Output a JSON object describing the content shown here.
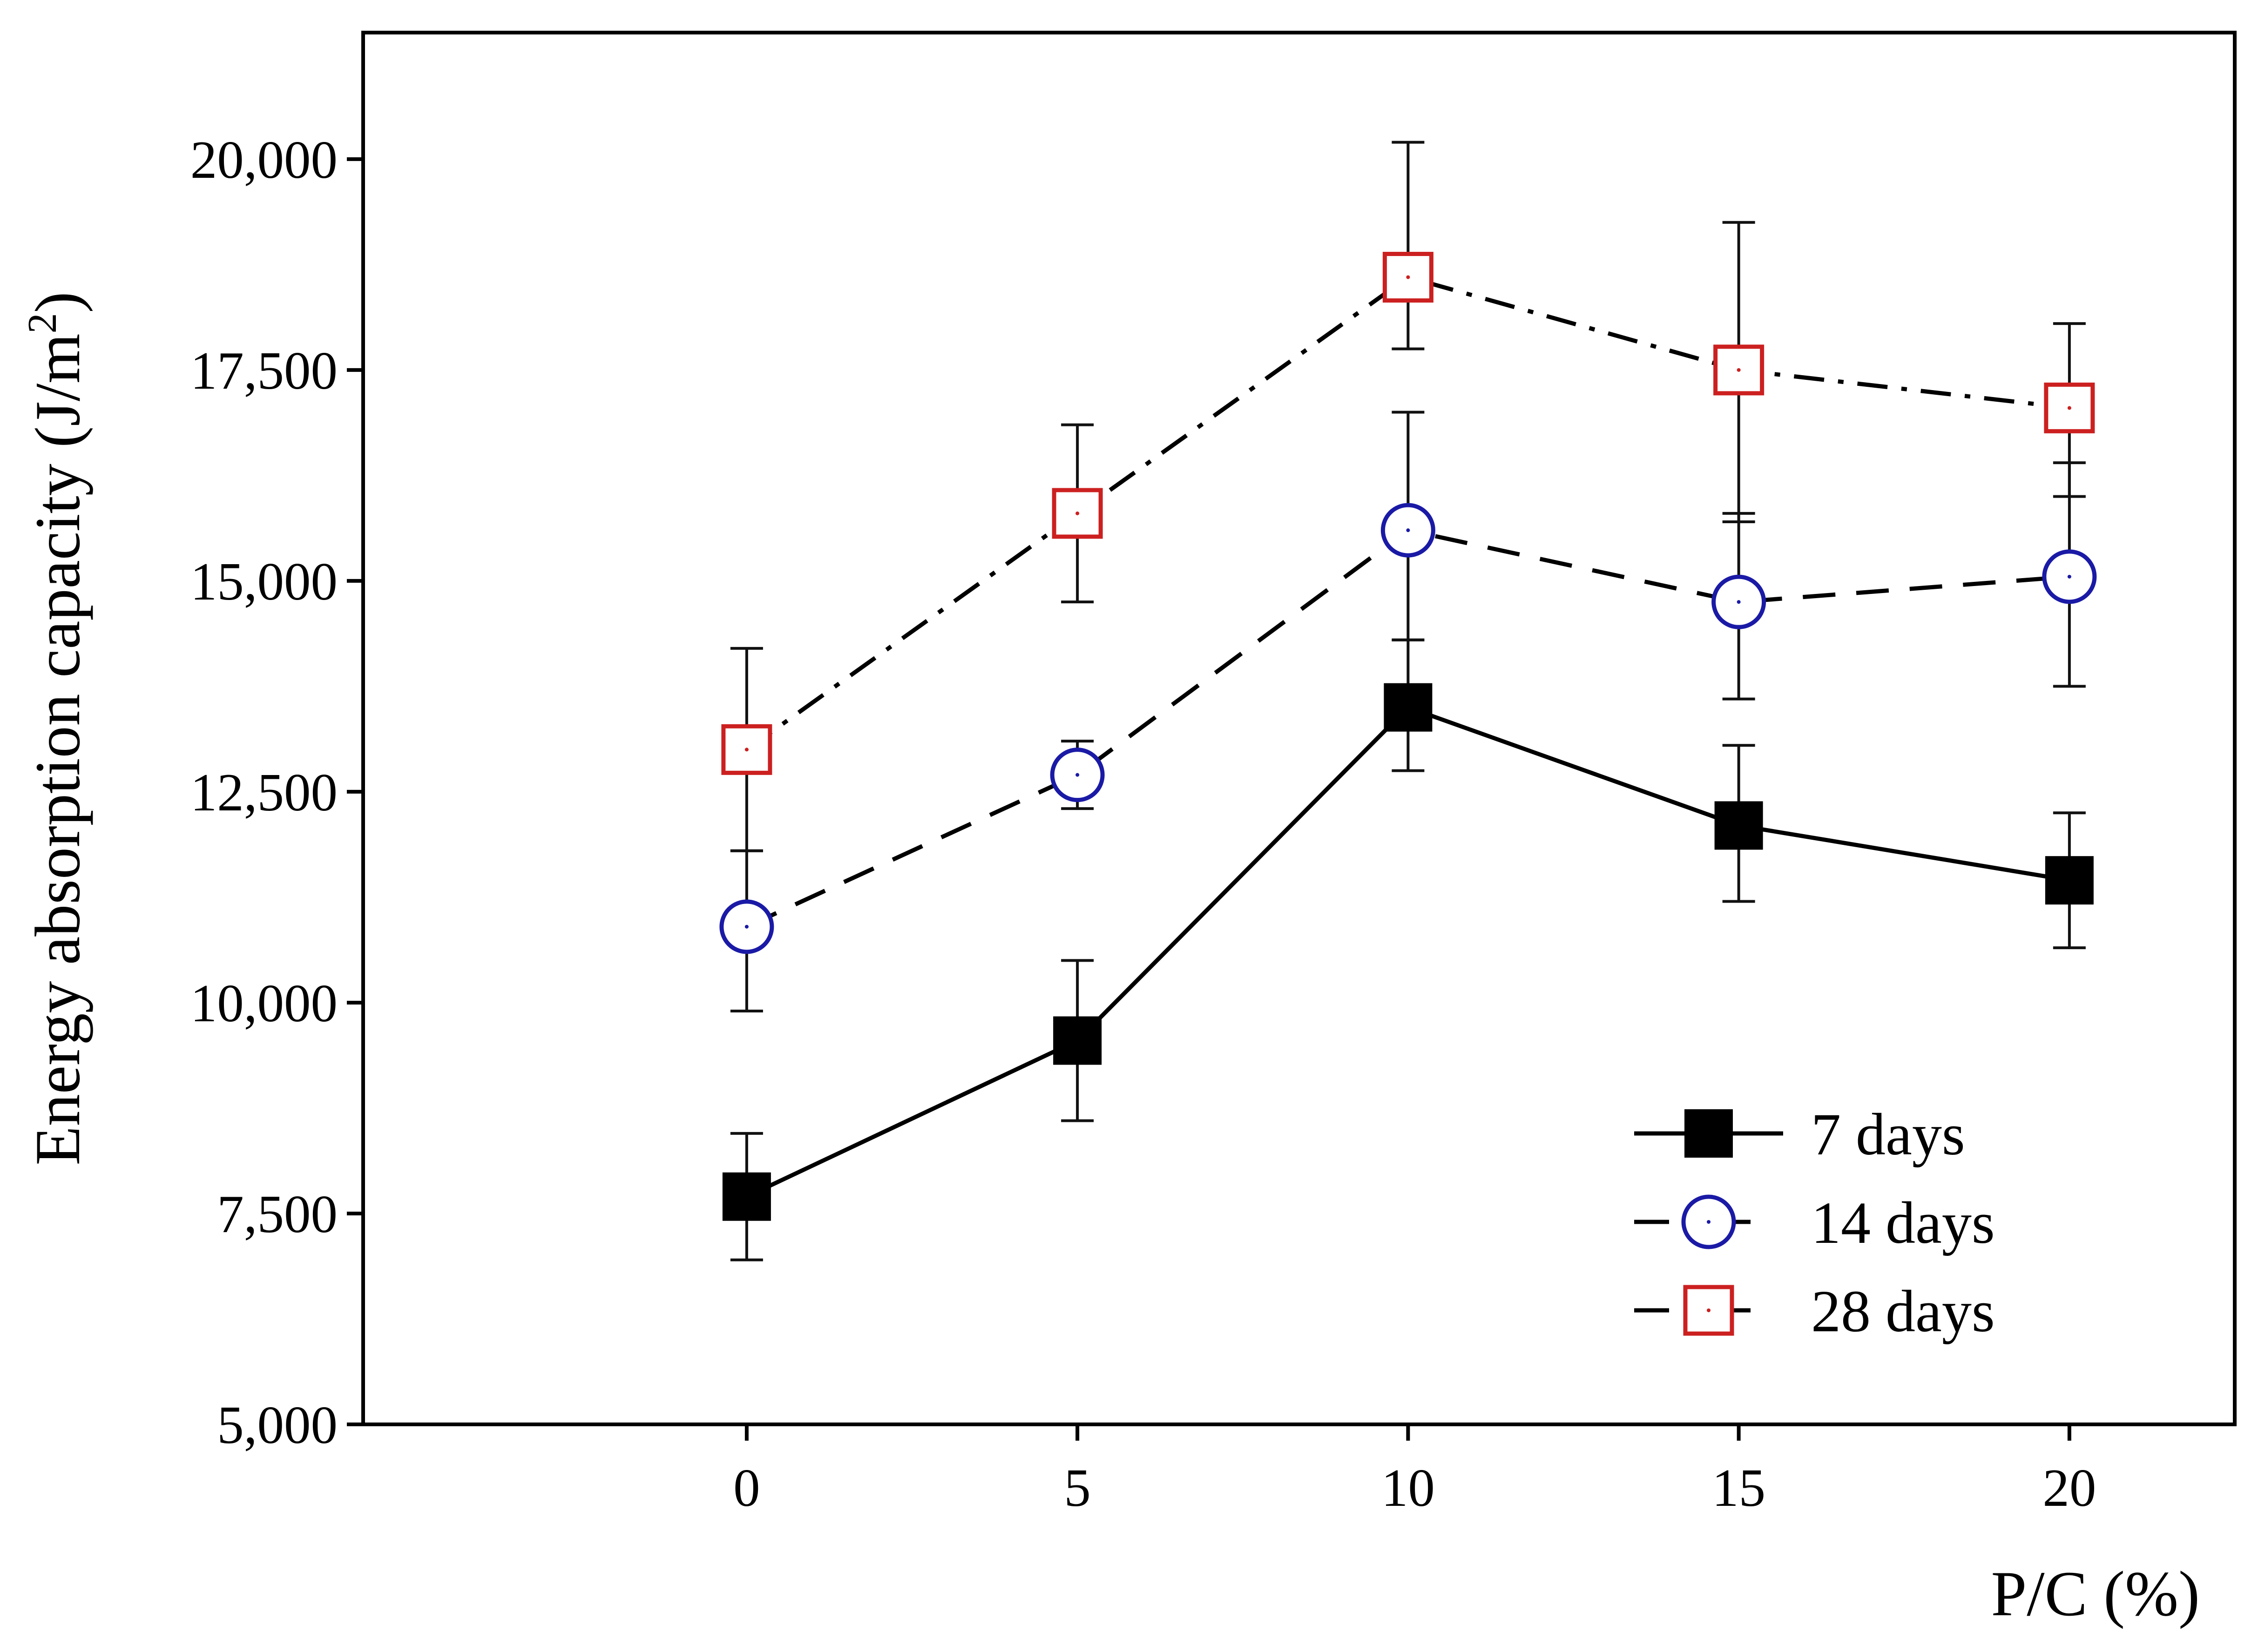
{
  "chart_data": {
    "type": "line",
    "title": "",
    "xlabel": "P/C (%)",
    "ylabel": "Energy absorption capacity (J/m",
    "ylabel_superscript": "2",
    "ylabel_close": ")",
    "x": [
      0,
      5,
      10,
      15,
      20
    ],
    "x_tick_labels": [
      "0",
      "5",
      "10",
      "15",
      "20"
    ],
    "xlim": [
      -5.8,
      22.5
    ],
    "ylim": [
      5000,
      21500
    ],
    "y_ticks": [
      5000,
      7500,
      10000,
      12500,
      15000,
      17500,
      20000
    ],
    "y_tick_labels": [
      "5,000",
      "7,500",
      "10,000",
      "12,500",
      "15,000",
      "17,500",
      "20,000"
    ],
    "grid": false,
    "legend_position": "bottom-right",
    "series": [
      {
        "name": "7 days",
        "marker": "filled-square",
        "line_style": "solid",
        "color": "#000000",
        "values": [
          7700,
          9550,
          13500,
          12100,
          11450
        ],
        "error_low": [
          6950,
          8600,
          12750,
          11200,
          10650
        ],
        "error_high": [
          8450,
          10500,
          14300,
          13050,
          12250
        ]
      },
      {
        "name": "14 days",
        "marker": "open-circle",
        "line_style": "dashed",
        "color": "#1a1aa6",
        "values": [
          10900,
          12700,
          15600,
          14750,
          15050
        ],
        "error_low": [
          9900,
          12300,
          14300,
          13600,
          13750
        ],
        "error_high": [
          11800,
          13100,
          17000,
          15800,
          16400
        ]
      },
      {
        "name": "28 days",
        "marker": "open-square",
        "line_style": "dash-dot",
        "color": "#cc2020",
        "values": [
          13000,
          15800,
          18600,
          17500,
          17050
        ],
        "error_low": [
          11800,
          14750,
          17750,
          15700,
          16000
        ],
        "error_high": [
          14200,
          16850,
          20200,
          19250,
          18050
        ]
      }
    ]
  }
}
